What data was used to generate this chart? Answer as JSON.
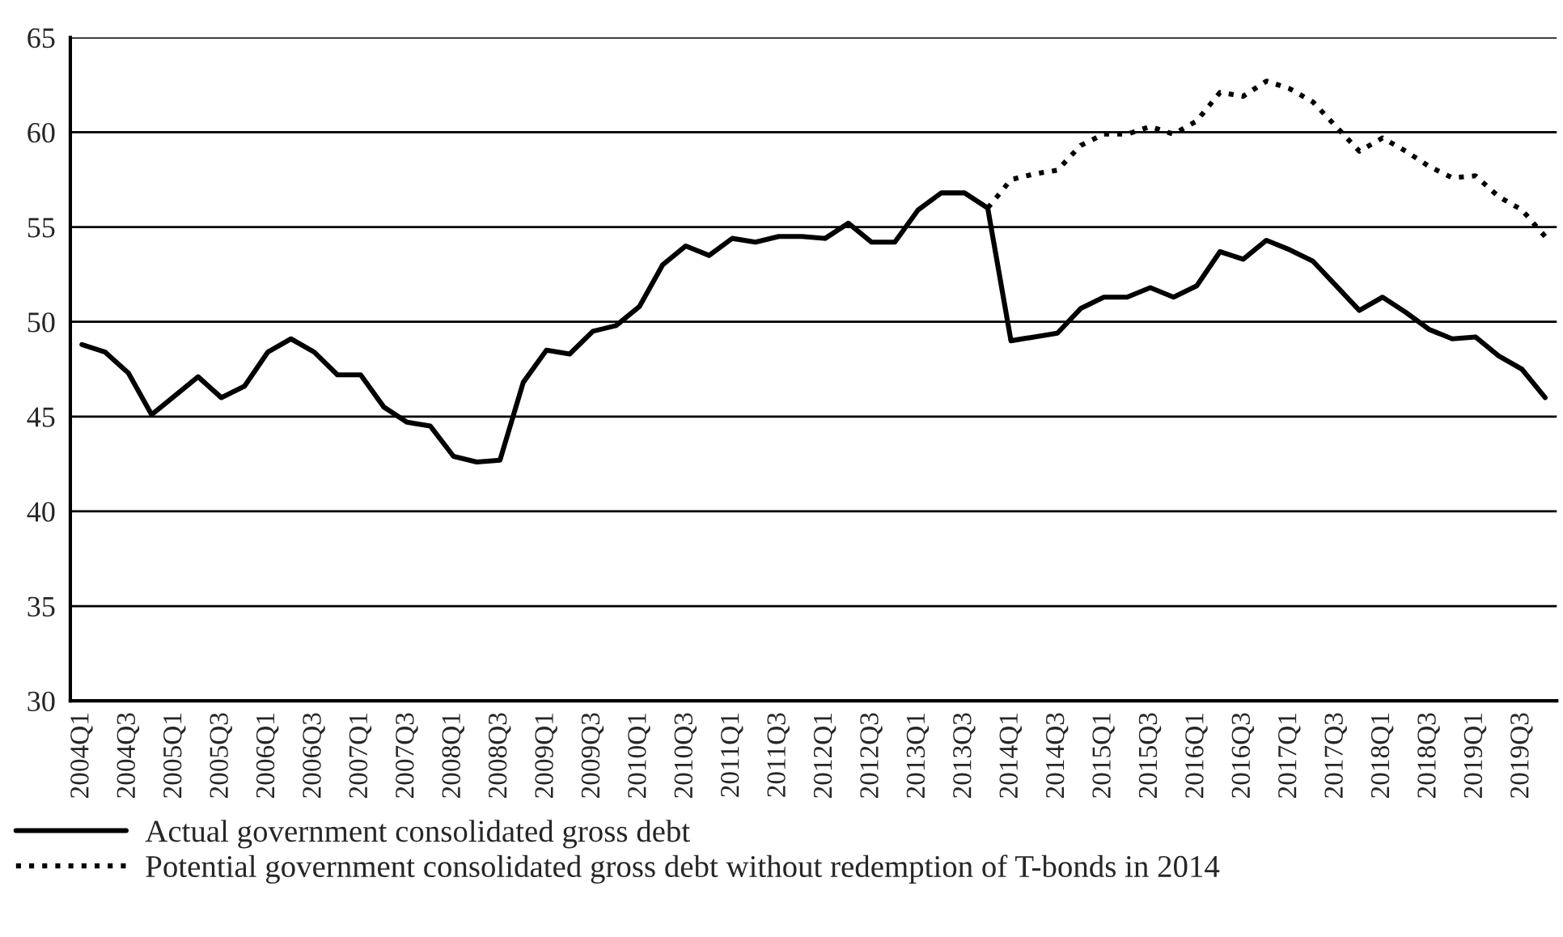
{
  "chart_data": {
    "type": "line",
    "categories": [
      "2004Q1",
      null,
      "2004Q3",
      null,
      "2005Q1",
      null,
      "2005Q3",
      null,
      "2006Q1",
      null,
      "2006Q3",
      null,
      "2007Q1",
      null,
      "2007Q3",
      null,
      "2008Q1",
      null,
      "2008Q3",
      null,
      "2009Q1",
      null,
      "2009Q3",
      null,
      "2010Q1",
      null,
      "2010Q3",
      null,
      "2011Q1",
      null,
      "2011Q3",
      null,
      "2012Q1",
      null,
      "2012Q3",
      null,
      "2013Q1",
      null,
      "2013Q3",
      null,
      "2014Q1",
      null,
      "2014Q3",
      null,
      "2015Q1",
      null,
      "2015Q3",
      null,
      "2016Q1",
      null,
      "2016Q3",
      null,
      "2017Q1",
      null,
      "2017Q3",
      null,
      "2018Q1",
      null,
      "2018Q3",
      null,
      "2019Q1",
      null,
      "2019Q3",
      null
    ],
    "series": [
      {
        "name": "Actual government consolidated gross debt",
        "color": "#000000",
        "line_style": "solid",
        "values": [
          48.8,
          48.4,
          47.3,
          45.1,
          46.1,
          47.1,
          46.0,
          46.6,
          48.4,
          49.1,
          48.4,
          47.2,
          47.2,
          45.5,
          44.7,
          44.5,
          42.9,
          42.6,
          42.7,
          46.8,
          48.5,
          48.3,
          49.5,
          49.8,
          50.8,
          53.0,
          54.0,
          53.5,
          54.4,
          54.2,
          54.5,
          54.5,
          54.4,
          55.2,
          54.2,
          54.2,
          55.9,
          56.8,
          56.8,
          56.0,
          49.0,
          49.2,
          49.4,
          50.7,
          51.3,
          51.3,
          51.8,
          51.3,
          51.9,
          53.7,
          53.3,
          54.3,
          53.8,
          53.2,
          51.9,
          50.6,
          51.3,
          50.5,
          49.6,
          49.1,
          49.2,
          48.2,
          47.5,
          46.0
        ]
      },
      {
        "name": "Potential government consolidated gross debt without redemption of T-bonds in 2014",
        "color": "#000000",
        "line_style": "dotted",
        "values": [
          null,
          null,
          null,
          null,
          null,
          null,
          null,
          null,
          null,
          null,
          null,
          null,
          null,
          null,
          null,
          null,
          null,
          null,
          null,
          null,
          null,
          null,
          null,
          null,
          null,
          null,
          null,
          null,
          null,
          null,
          null,
          null,
          null,
          null,
          null,
          null,
          null,
          null,
          null,
          56.0,
          57.5,
          57.8,
          58.0,
          59.3,
          59.9,
          59.9,
          60.3,
          59.9,
          60.6,
          62.1,
          61.9,
          62.7,
          62.3,
          61.6,
          60.3,
          59.0,
          59.7,
          59.0,
          58.2,
          57.6,
          57.7,
          56.6,
          55.9,
          54.5
        ]
      }
    ],
    "ylim": [
      30,
      65
    ],
    "yticks": [
      30,
      35,
      40,
      45,
      50,
      55,
      60,
      65
    ],
    "grid": "y",
    "legend": "bottom left",
    "marker": "none"
  }
}
